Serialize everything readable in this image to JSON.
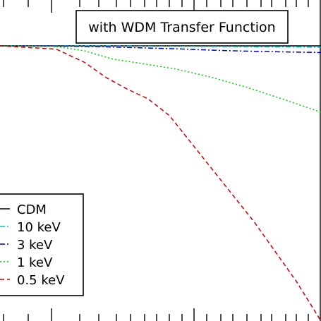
{
  "chart_data": {
    "type": "line",
    "title": "",
    "xlabel": "",
    "ylabel": "",
    "annotation": "with WDM Transfer Function",
    "legend": {
      "placement": "bottom-left"
    },
    "grid": false,
    "series": [
      {
        "name": "CDM",
        "color": "#000000",
        "dash": "solid",
        "x": [
          0,
          455
        ],
        "y": [
          1.0,
          1.0
        ]
      },
      {
        "name": "10 keV",
        "color": "#00bfbf",
        "dash": "dashdot",
        "x": [
          0,
          100,
          200,
          300,
          400,
          455
        ],
        "y": [
          1.0,
          1.0,
          0.999,
          0.998,
          0.997,
          0.996
        ]
      },
      {
        "name": "3 keV",
        "color": "#0000cc",
        "dash": "dashdot",
        "x": [
          0,
          100,
          150,
          200,
          250,
          300,
          350,
          400,
          455
        ],
        "y": [
          1.0,
          0.999,
          0.997,
          0.994,
          0.991,
          0.987,
          0.984,
          0.982,
          0.98
        ]
      },
      {
        "name": "1 keV",
        "color": "#00cc00",
        "dash": "dotted",
        "x": [
          0,
          80,
          120,
          160,
          200,
          250,
          300,
          350,
          400,
          455
        ],
        "y": [
          1.0,
          0.998,
          0.985,
          0.96,
          0.947,
          0.93,
          0.905,
          0.875,
          0.84,
          0.8
        ]
      },
      {
        "name": "0.5 keV",
        "color": "#cc0000",
        "dash": "dashed",
        "x": [
          0,
          80,
          120,
          150,
          180,
          210,
          240,
          270,
          300,
          330,
          360,
          390,
          420,
          455
        ],
        "y": [
          1.0,
          0.99,
          0.95,
          0.905,
          0.87,
          0.84,
          0.79,
          0.71,
          0.63,
          0.55,
          0.47,
          0.38,
          0.29,
          0.17
        ]
      }
    ]
  }
}
